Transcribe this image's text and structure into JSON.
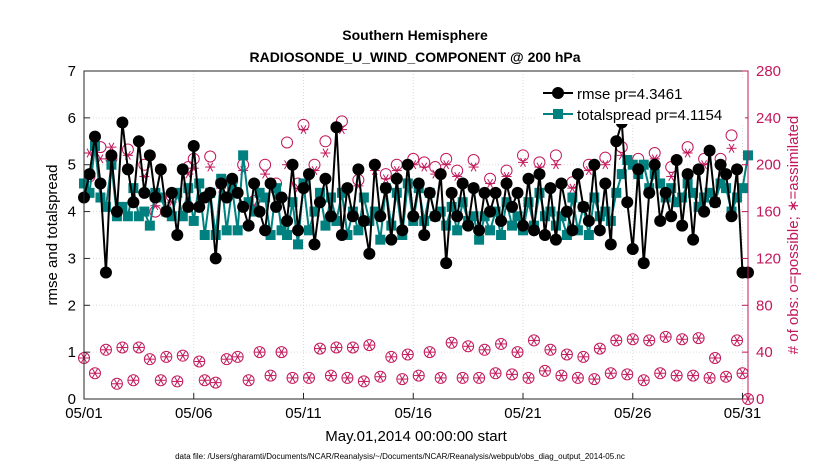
{
  "chart_data": {
    "type": "line",
    "title": "Southern Hemisphere",
    "subtitle": "RADIOSONDE_U_WIND_COMPONENT @ 200 hPa",
    "xlabel": "May.01,2014 00:00:00 start",
    "ylabel": "rmse and totalspread",
    "y2label": "# of obs: o=possible; ∗=assimilated",
    "x_tick_labels": [
      "05/01",
      "05/06",
      "05/11",
      "05/16",
      "05/21",
      "05/26",
      "05/31"
    ],
    "x_tick_positions": [
      1,
      6,
      11,
      16,
      21,
      26,
      31
    ],
    "xlim": [
      1,
      31.25
    ],
    "ylim": [
      0,
      7
    ],
    "y_ticks": [
      0,
      1,
      2,
      3,
      4,
      5,
      6,
      7
    ],
    "y2lim": [
      0,
      280
    ],
    "y2_ticks": [
      0,
      40,
      80,
      120,
      160,
      200,
      240,
      280
    ],
    "grid": true,
    "legend_position": "top-right",
    "colors": {
      "rmse": "#000000",
      "totalspread": "#00807f",
      "obs": "#c2185b"
    },
    "footnote": "data file: /Users/gharamti/Documents/NCAR/Reanalysis/~/Documents/NCAR/Reanalysis/webpub/obs_diag_output_2014-05.nc",
    "series": [
      {
        "name": "rmse pr=4.3461",
        "axis": "left",
        "marker": "circle",
        "x": [
          1.0,
          1.25,
          1.5,
          1.75,
          2.0,
          2.25,
          2.5,
          2.75,
          3.0,
          3.25,
          3.5,
          3.75,
          4.0,
          4.25,
          4.5,
          4.75,
          5.0,
          5.25,
          5.5,
          5.75,
          6.0,
          6.25,
          6.5,
          6.75,
          7.0,
          7.25,
          7.5,
          7.75,
          8.0,
          8.25,
          8.5,
          8.75,
          9.0,
          9.25,
          9.5,
          9.75,
          10.0,
          10.25,
          10.5,
          10.75,
          11.0,
          11.25,
          11.5,
          11.75,
          12.0,
          12.25,
          12.5,
          12.75,
          13.0,
          13.25,
          13.5,
          13.75,
          14.0,
          14.25,
          14.5,
          14.75,
          15.0,
          15.25,
          15.5,
          15.75,
          16.0,
          16.25,
          16.5,
          16.75,
          17.0,
          17.25,
          17.5,
          17.75,
          18.0,
          18.25,
          18.5,
          18.75,
          19.0,
          19.25,
          19.5,
          19.75,
          20.0,
          20.25,
          20.5,
          20.75,
          21.0,
          21.25,
          21.5,
          21.75,
          22.0,
          22.25,
          22.5,
          22.75,
          23.0,
          23.25,
          23.5,
          23.75,
          24.0,
          24.25,
          24.5,
          24.75,
          25.0,
          25.25,
          25.5,
          25.75,
          26.0,
          26.25,
          26.5,
          26.75,
          27.0,
          27.25,
          27.5,
          27.75,
          28.0,
          28.25,
          28.5,
          28.75,
          29.0,
          29.25,
          29.5,
          29.75,
          30.0,
          30.25,
          30.5,
          30.75,
          31.0,
          31.25
        ],
        "values": [
          4.3,
          4.8,
          5.6,
          4.6,
          2.7,
          5.2,
          4.0,
          5.9,
          4.9,
          4.2,
          5.5,
          4.4,
          5.2,
          4.3,
          4.9,
          4.0,
          4.4,
          3.5,
          4.9,
          4.1,
          5.4,
          4.1,
          4.3,
          4.4,
          3.0,
          4.6,
          4.3,
          4.7,
          4.4,
          4.1,
          3.7,
          4.6,
          4.0,
          3.6,
          4.6,
          4.1,
          4.3,
          3.8,
          5.0,
          3.6,
          4.5,
          4.8,
          3.3,
          4.2,
          4.7,
          3.9,
          5.8,
          3.5,
          4.5,
          3.9,
          4.9,
          3.8,
          3.1,
          5.0,
          3.9,
          4.5,
          3.4,
          4.7,
          3.6,
          5.0,
          3.9,
          4.6,
          3.5,
          4.4,
          3.9,
          4.8,
          2.9,
          4.4,
          3.9,
          4.6,
          3.7,
          4.5,
          3.6,
          4.4,
          4.0,
          4.4,
          3.8,
          4.6,
          4.1,
          4.4,
          3.7,
          4.7,
          3.6,
          4.8,
          3.5,
          4.5,
          3.4,
          4.6,
          4.0,
          3.6,
          4.8,
          4.1,
          3.8,
          5.0,
          3.6,
          4.6,
          3.3,
          5.5,
          5.9,
          4.2,
          3.2,
          4.9,
          2.9,
          4.4,
          5.0,
          3.8,
          4.4,
          3.9,
          5.1,
          3.7,
          4.8,
          3.4,
          4.9,
          4.0,
          5.3,
          4.2,
          5.0,
          4.8,
          3.9,
          4.9,
          2.7,
          2.7
        ]
      },
      {
        "name": "totalspread pr=4.1154",
        "axis": "left",
        "marker": "square",
        "x": [
          1.0,
          1.25,
          1.5,
          1.75,
          2.0,
          2.25,
          2.5,
          2.75,
          3.0,
          3.25,
          3.5,
          3.75,
          4.0,
          4.25,
          4.5,
          4.75,
          5.0,
          5.25,
          5.5,
          5.75,
          6.0,
          6.25,
          6.5,
          6.75,
          7.0,
          7.25,
          7.5,
          7.75,
          8.0,
          8.25,
          8.5,
          8.75,
          9.0,
          9.25,
          9.5,
          9.75,
          10.0,
          10.25,
          10.5,
          10.75,
          11.0,
          11.25,
          11.5,
          11.75,
          12.0,
          12.25,
          12.5,
          12.75,
          13.0,
          13.25,
          13.5,
          13.75,
          14.0,
          14.25,
          14.5,
          14.75,
          15.0,
          15.25,
          15.5,
          15.75,
          16.0,
          16.25,
          16.5,
          16.75,
          17.0,
          17.25,
          17.5,
          17.75,
          18.0,
          18.25,
          18.5,
          18.75,
          19.0,
          19.25,
          19.5,
          19.75,
          20.0,
          20.25,
          20.5,
          20.75,
          21.0,
          21.25,
          21.5,
          21.75,
          22.0,
          22.25,
          22.5,
          22.75,
          23.0,
          23.25,
          23.5,
          23.75,
          24.0,
          24.25,
          24.5,
          24.75,
          25.0,
          25.25,
          25.5,
          25.75,
          26.0,
          26.25,
          26.5,
          26.75,
          27.0,
          27.25,
          27.5,
          27.75,
          28.0,
          28.25,
          28.5,
          28.75,
          29.0,
          29.25,
          29.5,
          29.75,
          30.0,
          30.25,
          30.5,
          30.75,
          31.0,
          31.25
        ],
        "values": [
          4.6,
          4.4,
          5.4,
          4.3,
          4.1,
          5.0,
          3.9,
          4.1,
          3.9,
          4.5,
          3.9,
          4.0,
          3.7,
          4.4,
          4.3,
          4.0,
          3.9,
          4.4,
          3.9,
          4.5,
          3.8,
          4.6,
          3.5,
          4.4,
          3.5,
          4.7,
          3.6,
          4.5,
          3.6,
          5.2,
          4.2,
          4.0,
          4.4,
          4.3,
          3.5,
          4.5,
          3.6,
          3.5,
          4.2,
          3.3,
          4.6,
          3.6,
          4.0,
          4.4,
          3.7,
          4.3,
          3.8,
          4.4,
          3.5,
          4.0,
          3.6,
          4.3,
          3.8,
          4.0,
          3.4,
          4.5,
          3.7,
          4.4,
          3.5,
          4.6,
          3.8,
          4.5,
          3.8,
          4.4,
          3.9,
          4.0,
          3.7,
          4.1,
          3.6,
          4.2,
          3.8,
          3.9,
          3.4,
          3.9,
          3.6,
          4.0,
          3.5,
          4.2,
          3.7,
          3.9,
          3.6,
          4.2,
          3.7,
          4.4,
          3.9,
          4.0,
          3.7,
          3.9,
          3.5,
          4.3,
          3.6,
          4.1,
          3.5,
          4.3,
          3.9,
          4.0,
          3.8,
          4.4,
          4.8,
          5.1,
          5.0,
          4.8,
          5.0,
          4.5,
          4.8,
          4.6,
          4.3,
          4.5,
          4.2,
          4.3,
          4.6,
          4.4,
          4.1,
          4.3,
          4.4,
          4.2,
          4.6,
          4.5,
          4.0,
          4.3,
          4.5,
          5.2
        ]
      },
      {
        "name": "possible",
        "axis": "right",
        "marker": "circle-open",
        "x": [
          1.0,
          1.25,
          1.5,
          1.75,
          2.0,
          2.25,
          2.5,
          2.75,
          3.0,
          3.25,
          3.5,
          3.75,
          4.0,
          4.25,
          4.5,
          4.75,
          5.0,
          5.25,
          5.5,
          5.75,
          6.0,
          6.25,
          6.5,
          6.75,
          7.0,
          7.25,
          7.5,
          7.75,
          8.0,
          8.25,
          8.5,
          8.75,
          9.0,
          9.25,
          9.5,
          9.75,
          10.0,
          10.25,
          10.5,
          10.75,
          11.0,
          11.25,
          11.5,
          11.75,
          12.0,
          12.25,
          12.5,
          12.75,
          13.0,
          13.25,
          13.5,
          13.75,
          14.0,
          14.25,
          14.5,
          14.75,
          15.0,
          15.25,
          15.5,
          15.75,
          16.0,
          16.25,
          16.5,
          16.75,
          17.0,
          17.25,
          17.5,
          17.75,
          18.0,
          18.25,
          18.5,
          18.75,
          19.0,
          19.25,
          19.5,
          19.75,
          20.0,
          20.25,
          20.5,
          20.75,
          21.0,
          21.25,
          21.5,
          21.75,
          22.0,
          22.25,
          22.5,
          22.75,
          23.0,
          23.25,
          23.5,
          23.75,
          24.0,
          24.25,
          24.5,
          24.75,
          25.0,
          25.25,
          25.5,
          25.75,
          26.0,
          26.25,
          26.5,
          26.75,
          27.0,
          27.25,
          27.5,
          27.75,
          28.0,
          28.25,
          28.5,
          28.75,
          29.0,
          29.25,
          29.5,
          29.75,
          30.0,
          30.25,
          30.5,
          30.75,
          31.0,
          31.25
        ],
        "values": [
          35,
          190,
          22,
          215,
          42,
          205,
          13,
          44,
          213,
          16,
          44,
          200,
          34,
          160,
          16,
          36,
          173,
          15,
          37,
          198,
          205,
          32,
          16,
          207,
          14,
          185,
          34,
          186,
          36,
          200,
          16,
          169,
          40,
          200,
          20,
          184,
          40,
          219,
          18,
          184,
          234,
          18,
          200,
          43,
          220,
          20,
          44,
          237,
          18,
          44,
          187,
          15,
          46,
          200,
          19,
          192,
          36,
          200,
          17,
          38,
          205,
          20,
          202,
          40,
          198,
          18,
          205,
          48,
          195,
          18,
          45,
          204,
          18,
          42,
          188,
          22,
          47,
          195,
          21,
          40,
          208,
          18,
          50,
          202,
          24,
          42,
          208,
          20,
          38,
          185,
          18,
          36,
          200,
          17,
          43,
          206,
          22,
          50,
          215,
          21,
          51,
          205,
          16,
          50,
          210,
          22,
          53,
          198,
          20,
          51,
          215,
          20,
          52,
          205,
          18,
          35,
          205,
          19,
          225,
          50,
          22,
          0
        ]
      },
      {
        "name": "assimilated",
        "axis": "right",
        "marker": "asterisk",
        "x": [
          1.0,
          1.25,
          1.5,
          1.75,
          2.0,
          2.25,
          2.5,
          2.75,
          3.0,
          3.25,
          3.5,
          3.75,
          4.0,
          4.25,
          4.5,
          4.75,
          5.0,
          5.25,
          5.5,
          5.75,
          6.0,
          6.25,
          6.5,
          6.75,
          7.0,
          7.25,
          7.5,
          7.75,
          8.0,
          8.25,
          8.5,
          8.75,
          9.0,
          9.25,
          9.5,
          9.75,
          10.0,
          10.25,
          10.5,
          10.75,
          11.0,
          11.25,
          11.5,
          11.75,
          12.0,
          12.25,
          12.5,
          12.75,
          13.0,
          13.25,
          13.5,
          13.75,
          14.0,
          14.25,
          14.5,
          14.75,
          15.0,
          15.25,
          15.5,
          15.75,
          16.0,
          16.25,
          16.5,
          16.75,
          17.0,
          17.25,
          17.5,
          17.75,
          18.0,
          18.25,
          18.5,
          18.75,
          19.0,
          19.25,
          19.5,
          19.75,
          20.0,
          20.25,
          20.5,
          20.75,
          21.0,
          21.25,
          21.5,
          21.75,
          22.0,
          22.25,
          22.5,
          22.75,
          23.0,
          23.25,
          23.5,
          23.75,
          24.0,
          24.25,
          24.5,
          24.75,
          25.0,
          25.25,
          25.5,
          25.75,
          26.0,
          26.25,
          26.5,
          26.75,
          27.0,
          27.25,
          27.5,
          27.75,
          28.0,
          28.25,
          28.5,
          28.75,
          29.0,
          29.25,
          29.5,
          29.75,
          30.0,
          30.25,
          30.5,
          30.75,
          31.0,
          31.25
        ],
        "values": [
          35,
          210,
          22,
          205,
          42,
          215,
          13,
          44,
          208,
          16,
          44,
          190,
          34,
          165,
          16,
          36,
          168,
          15,
          37,
          192,
          197,
          32,
          16,
          198,
          14,
          180,
          34,
          180,
          36,
          195,
          16,
          165,
          40,
          192,
          20,
          180,
          40,
          200,
          18,
          180,
          230,
          18,
          195,
          43,
          210,
          20,
          44,
          230,
          18,
          44,
          182,
          15,
          46,
          195,
          19,
          188,
          36,
          195,
          17,
          38,
          200,
          20,
          198,
          40,
          192,
          18,
          200,
          48,
          190,
          18,
          45,
          198,
          18,
          42,
          184,
          22,
          47,
          190,
          21,
          40,
          202,
          18,
          50,
          198,
          24,
          42,
          200,
          20,
          38,
          180,
          18,
          36,
          195,
          17,
          43,
          200,
          22,
          50,
          208,
          21,
          51,
          200,
          16,
          50,
          205,
          22,
          53,
          190,
          20,
          51,
          210,
          20,
          52,
          200,
          18,
          35,
          200,
          19,
          214,
          50,
          22,
          0
        ]
      }
    ]
  }
}
